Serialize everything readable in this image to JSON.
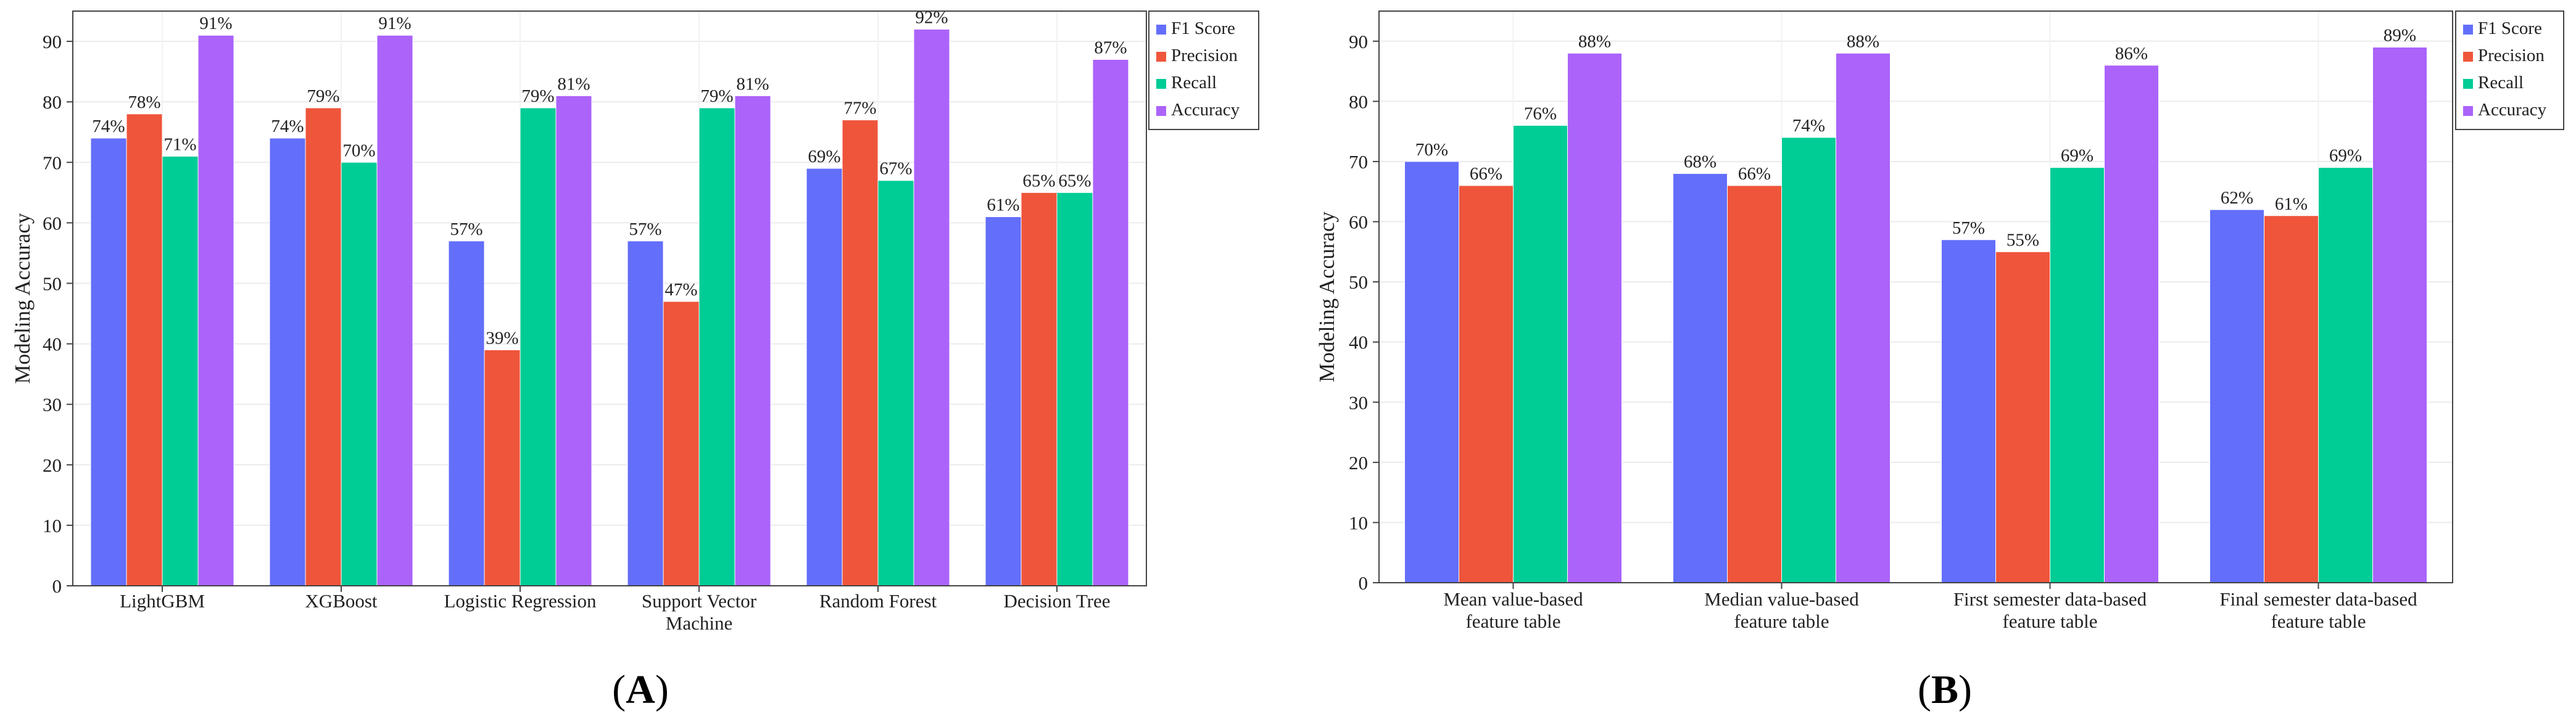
{
  "chart_data": [
    {
      "type": "bar",
      "panel_label": "(A)",
      "title": "",
      "xlabel": "",
      "ylabel": "Modeling Accuracy",
      "ylim": [
        0,
        95
      ],
      "yticks": [
        0,
        10,
        20,
        30,
        40,
        50,
        60,
        70,
        80,
        90
      ],
      "grid": true,
      "legend_position": "top-right",
      "categories": [
        [
          "LightGBM"
        ],
        [
          "XGBoost"
        ],
        [
          "Logistic Regression"
        ],
        [
          "Support Vector",
          "Machine"
        ],
        [
          "Random Forest"
        ],
        [
          "Decision Tree"
        ]
      ],
      "series": [
        {
          "name": "F1 Score",
          "color": "#636efa",
          "values": [
            74,
            74,
            57,
            57,
            69,
            61
          ]
        },
        {
          "name": "Precision",
          "color": "#ef553b",
          "values": [
            78,
            79,
            39,
            47,
            77,
            65
          ]
        },
        {
          "name": "Recall",
          "color": "#00cc96",
          "values": [
            71,
            70,
            79,
            79,
            67,
            65
          ]
        },
        {
          "name": "Accuracy",
          "color": "#ab63fa",
          "values": [
            91,
            91,
            81,
            81,
            92,
            87
          ]
        }
      ],
      "label_suffix": "%"
    },
    {
      "type": "bar",
      "panel_label": "(B)",
      "title": "",
      "xlabel": "",
      "ylabel": "Modeling Accuracy",
      "ylim": [
        0,
        95
      ],
      "yticks": [
        0,
        10,
        20,
        30,
        40,
        50,
        60,
        70,
        80,
        90
      ],
      "grid": true,
      "legend_position": "top-right",
      "categories": [
        [
          "Mean value-based",
          "feature table"
        ],
        [
          "Median value-based",
          "feature table"
        ],
        [
          "First semester data-based",
          "feature table"
        ],
        [
          "Final semester data-based",
          "feature table"
        ]
      ],
      "series": [
        {
          "name": "F1 Score",
          "color": "#636efa",
          "values": [
            70,
            68,
            57,
            62
          ]
        },
        {
          "name": "Precision",
          "color": "#ef553b",
          "values": [
            66,
            66,
            55,
            61
          ]
        },
        {
          "name": "Recall",
          "color": "#00cc96",
          "values": [
            76,
            74,
            69,
            69
          ]
        },
        {
          "name": "Accuracy",
          "color": "#ab63fa",
          "values": [
            88,
            88,
            86,
            89
          ]
        }
      ],
      "label_suffix": "%"
    }
  ]
}
